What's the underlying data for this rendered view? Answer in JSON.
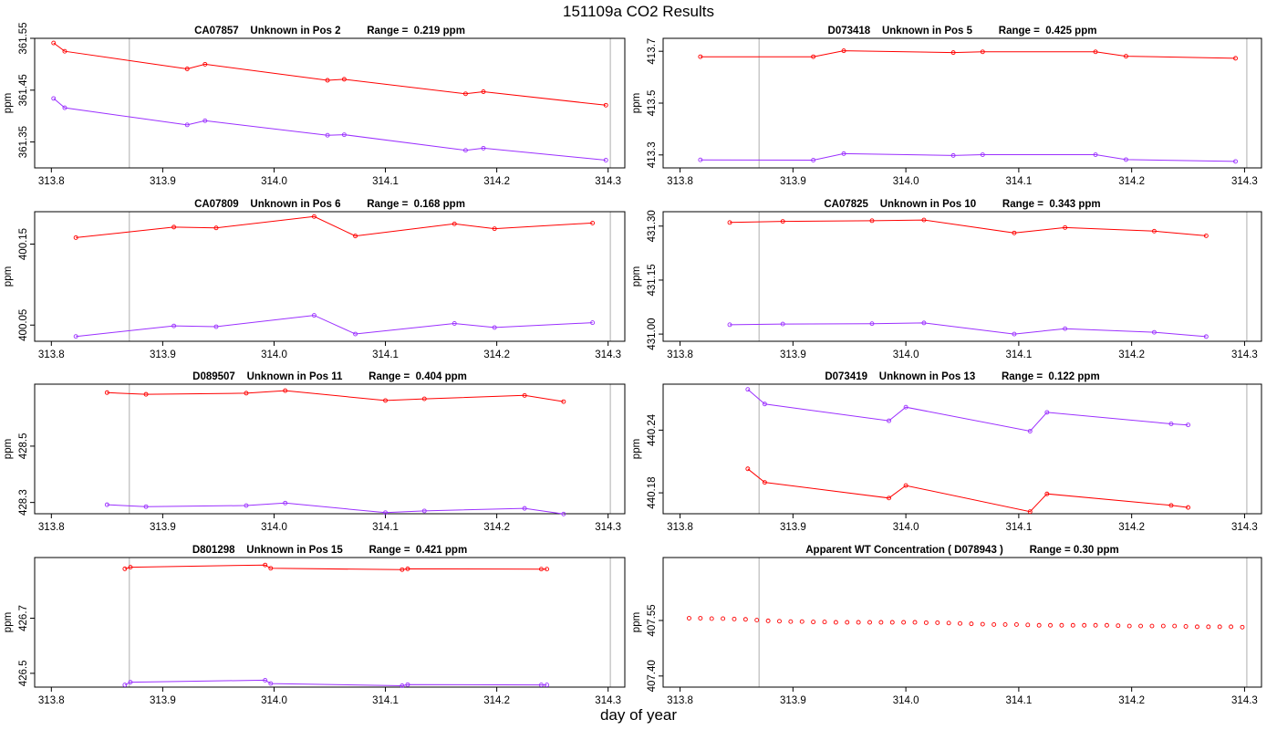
{
  "title": "151109a  CO2 Results",
  "xlabel": "day of year",
  "colors": {
    "series_a": "#ff0000",
    "series_b": "#9b30ff",
    "vline": "#bbbbbb",
    "frame": "#000000"
  },
  "chart_data": [
    {
      "type": "line",
      "title": "CA07857    Unknown in Pos 2         Range =  0.219 ppm",
      "ylabel": "ppm",
      "xlim": [
        313.8,
        314.3
      ],
      "ylim": [
        361.3,
        361.55
      ],
      "xticks": [
        "313.8",
        "313.9",
        "314.0",
        "314.1",
        "314.2",
        "314.3"
      ],
      "yticks": [
        "361.35",
        "361.45",
        "361.55"
      ],
      "vlines": [
        313.87,
        314.302
      ],
      "series": [
        {
          "name": "a",
          "x": [
            313.802,
            313.812,
            313.922,
            313.938,
            314.048,
            314.063,
            314.172,
            314.188,
            314.298
          ],
          "y": [
            361.541,
            361.525,
            361.491,
            361.5,
            361.469,
            361.471,
            361.443,
            361.447,
            361.421
          ]
        },
        {
          "name": "b",
          "x": [
            313.802,
            313.812,
            313.922,
            313.938,
            314.048,
            314.063,
            314.172,
            314.188,
            314.298
          ],
          "y": [
            361.434,
            361.416,
            361.383,
            361.391,
            361.363,
            361.364,
            361.334,
            361.338,
            361.315
          ]
        }
      ]
    },
    {
      "type": "line",
      "title": "D073418    Unknown in Pos 5         Range =  0.425 ppm",
      "ylabel": "ppm",
      "xlim": [
        313.8,
        314.3
      ],
      "ylim": [
        413.25,
        413.75
      ],
      "xticks": [
        "313.8",
        "313.9",
        "314.0",
        "314.1",
        "314.2",
        "314.3"
      ],
      "yticks": [
        "413.3",
        "413.5",
        "413.7"
      ],
      "vlines": [
        313.87,
        314.302
      ],
      "series": [
        {
          "name": "a",
          "x": [
            313.818,
            313.918,
            313.945,
            314.042,
            314.068,
            314.168,
            314.195,
            314.292
          ],
          "y": [
            413.679,
            413.679,
            413.702,
            413.695,
            413.698,
            413.698,
            413.681,
            413.673
          ]
        },
        {
          "name": "b",
          "x": [
            313.818,
            313.918,
            313.945,
            314.042,
            314.068,
            314.168,
            314.195,
            314.292
          ],
          "y": [
            413.281,
            413.28,
            413.305,
            413.298,
            413.301,
            413.301,
            413.282,
            413.275
          ]
        }
      ]
    },
    {
      "type": "line",
      "title": "CA07809    Unknown in Pos 6         Range =  0.168 ppm",
      "ylabel": "ppm",
      "xlim": [
        313.8,
        314.3
      ],
      "ylim": [
        400.03,
        400.19
      ],
      "xticks": [
        "313.8",
        "313.9",
        "314.0",
        "314.1",
        "314.2",
        "314.3"
      ],
      "yticks": [
        "400.05",
        "400.15"
      ],
      "vlines": [
        313.87,
        314.302
      ],
      "series": [
        {
          "name": "a",
          "x": [
            313.822,
            313.91,
            313.948,
            314.036,
            314.073,
            314.162,
            314.198,
            314.286
          ],
          "y": [
            400.158,
            400.171,
            400.17,
            400.184,
            400.16,
            400.175,
            400.169,
            400.176
          ]
        },
        {
          "name": "b",
          "x": [
            313.822,
            313.91,
            313.948,
            314.036,
            314.073,
            314.162,
            314.198,
            314.286
          ],
          "y": [
            400.036,
            400.049,
            400.048,
            400.062,
            400.039,
            400.052,
            400.047,
            400.053
          ]
        }
      ]
    },
    {
      "type": "line",
      "title": "CA07825    Unknown in Pos 10         Range =  0.343 ppm",
      "ylabel": "ppm",
      "xlim": [
        313.8,
        314.3
      ],
      "ylim": [
        430.98,
        431.34
      ],
      "xticks": [
        "313.8",
        "313.9",
        "314.0",
        "314.1",
        "314.2",
        "314.3"
      ],
      "yticks": [
        "431.00",
        "431.15",
        "431.30"
      ],
      "vlines": [
        313.87,
        314.302
      ],
      "series": [
        {
          "name": "a",
          "x": [
            313.844,
            313.891,
            313.97,
            314.016,
            314.096,
            314.141,
            314.22,
            314.266
          ],
          "y": [
            431.31,
            431.313,
            431.315,
            431.317,
            431.281,
            431.296,
            431.286,
            431.273
          ]
        },
        {
          "name": "b",
          "x": [
            313.844,
            313.891,
            313.97,
            314.016,
            314.096,
            314.141,
            314.22,
            314.266
          ],
          "y": [
            431.026,
            431.028,
            431.029,
            431.031,
            431.0,
            431.015,
            431.005,
            430.993
          ]
        }
      ]
    },
    {
      "type": "line",
      "title": "D089507    Unknown in Pos 11         Range =  0.404 ppm",
      "ylabel": "ppm",
      "xlim": [
        313.8,
        314.3
      ],
      "ylim": [
        428.26,
        428.72
      ],
      "xticks": [
        "313.8",
        "313.9",
        "314.0",
        "314.1",
        "314.2",
        "314.3"
      ],
      "yticks": [
        "428.3",
        "428.5"
      ],
      "vlines": [
        313.87,
        314.302
      ],
      "series": [
        {
          "name": "a",
          "x": [
            313.85,
            313.885,
            313.975,
            314.01,
            314.1,
            314.135,
            314.225,
            314.26
          ],
          "y": [
            428.69,
            428.684,
            428.688,
            428.697,
            428.662,
            428.668,
            428.68,
            428.658
          ]
        },
        {
          "name": "b",
          "x": [
            313.85,
            313.885,
            313.975,
            314.01,
            314.1,
            314.135,
            314.225,
            314.26
          ],
          "y": [
            428.292,
            428.285,
            428.289,
            428.298,
            428.264,
            428.27,
            428.279,
            428.259
          ]
        }
      ]
    },
    {
      "type": "line",
      "title": "D073419    Unknown in Pos 13         Range =  0.122 ppm",
      "ylabel": "ppm",
      "xlim": [
        313.8,
        314.3
      ],
      "ylim": [
        440.16,
        440.284
      ],
      "xticks": [
        "313.8",
        "313.9",
        "314.0",
        "314.1",
        "314.2",
        "314.3"
      ],
      "yticks": [
        "440.18",
        "440.24"
      ],
      "vlines": [
        313.87,
        314.302
      ],
      "series": [
        {
          "name": "a",
          "x": [
            313.86,
            313.875,
            313.985,
            314.0,
            314.11,
            314.125,
            314.235,
            314.25
          ],
          "y": [
            440.203,
            440.19,
            440.175,
            440.187,
            440.162,
            440.179,
            440.168,
            440.166
          ]
        },
        {
          "name": "b",
          "x": [
            313.86,
            313.875,
            313.985,
            314.0,
            314.11,
            314.125,
            314.235,
            314.25
          ],
          "y": [
            440.279,
            440.265,
            440.249,
            440.262,
            440.239,
            440.257,
            440.246,
            440.245
          ]
        }
      ]
    },
    {
      "type": "line",
      "title": "D801298    Unknown in Pos 15         Range =  0.421 ppm",
      "ylabel": "ppm",
      "xlim": [
        313.8,
        314.3
      ],
      "ylim": [
        426.45,
        426.92
      ],
      "xticks": [
        "313.8",
        "313.9",
        "314.0",
        "314.1",
        "314.2",
        "314.3"
      ],
      "yticks": [
        "426.5",
        "426.7"
      ],
      "vlines": [
        313.87,
        314.302
      ],
      "series": [
        {
          "name": "a",
          "x": [
            313.866,
            313.871,
            313.992,
            313.997,
            314.115,
            314.12,
            314.24,
            314.245
          ],
          "y": [
            426.879,
            426.885,
            426.893,
            426.881,
            426.876,
            426.879,
            426.878,
            426.878
          ]
        },
        {
          "name": "b",
          "x": [
            313.866,
            313.871,
            313.992,
            313.997,
            314.115,
            314.12,
            314.24,
            314.245
          ],
          "y": [
            426.458,
            426.468,
            426.475,
            426.463,
            426.455,
            426.459,
            426.458,
            426.458
          ]
        }
      ]
    },
    {
      "type": "scatter",
      "title": "Apparent WT Concentration ( D078943 )         Range = 0.30 ppm",
      "ylabel": "ppm",
      "xlim": [
        313.8,
        314.3
      ],
      "ylim": [
        407.37,
        407.72
      ],
      "xticks": [
        "313.8",
        "313.9",
        "314.0",
        "314.1",
        "314.2",
        "314.3"
      ],
      "yticks": [
        "407.40",
        "407.55"
      ],
      "vlines": [
        313.87,
        314.302
      ],
      "series": [
        {
          "name": "a",
          "x": [
            313.808,
            313.818,
            313.828,
            313.838,
            313.848,
            313.858,
            313.868,
            313.878,
            313.888,
            313.898,
            313.908,
            313.918,
            313.928,
            313.938,
            313.948,
            313.958,
            313.968,
            313.978,
            313.988,
            313.998,
            314.008,
            314.018,
            314.028,
            314.038,
            314.048,
            314.058,
            314.068,
            314.078,
            314.088,
            314.098,
            314.108,
            314.118,
            314.128,
            314.138,
            314.148,
            314.158,
            314.168,
            314.178,
            314.188,
            314.198,
            314.208,
            314.218,
            314.228,
            314.238,
            314.248,
            314.258,
            314.268,
            314.278,
            314.288,
            314.298
          ],
          "y": [
            407.556,
            407.556,
            407.555,
            407.555,
            407.554,
            407.553,
            407.551,
            407.549,
            407.548,
            407.547,
            407.547,
            407.546,
            407.546,
            407.545,
            407.545,
            407.545,
            407.545,
            407.545,
            407.545,
            407.545,
            407.545,
            407.544,
            407.544,
            407.543,
            407.542,
            407.541,
            407.54,
            407.539,
            407.539,
            407.539,
            407.538,
            407.537,
            407.537,
            407.537,
            407.537,
            407.537,
            407.537,
            407.537,
            407.536,
            407.535,
            407.535,
            407.535,
            407.535,
            407.535,
            407.534,
            407.533,
            407.533,
            407.533,
            407.533,
            407.532
          ]
        }
      ]
    }
  ]
}
